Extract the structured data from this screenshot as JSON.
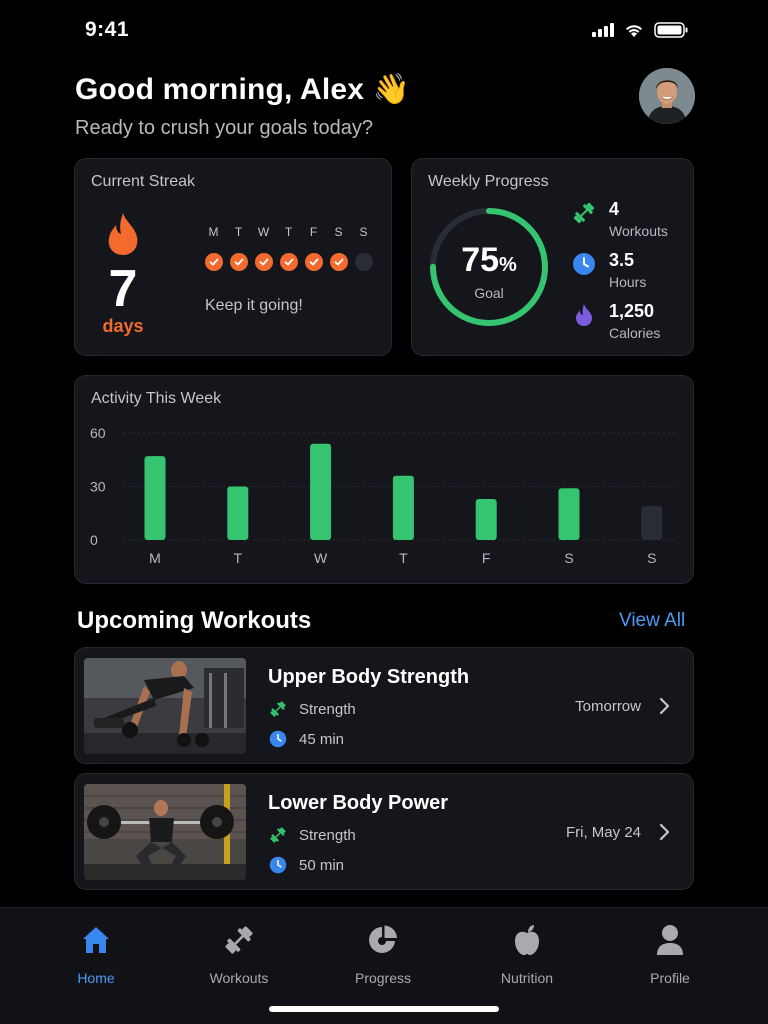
{
  "status": {
    "time": "9:41"
  },
  "header": {
    "greeting": "Good morning, Alex",
    "greeting_emoji": "👋",
    "subtitle": "Ready to crush your goals today?"
  },
  "streak": {
    "title": "Current Streak",
    "count": "7",
    "unit": "days",
    "message": "Keep it going!",
    "days": [
      {
        "letter": "M",
        "done": true
      },
      {
        "letter": "T",
        "done": true
      },
      {
        "letter": "W",
        "done": true
      },
      {
        "letter": "T",
        "done": true
      },
      {
        "letter": "F",
        "done": true
      },
      {
        "letter": "S",
        "done": true
      },
      {
        "letter": "S",
        "done": false
      }
    ]
  },
  "weekly": {
    "title": "Weekly Progress",
    "percent": "75",
    "percent_sign": "%",
    "progress_fraction": 0.75,
    "goal_label": "Goal",
    "stats": [
      {
        "value": "4",
        "label": "Workouts",
        "icon": "dumbbell-icon"
      },
      {
        "value": "3.5",
        "label": "Hours",
        "icon": "clock-icon"
      },
      {
        "value": "1,250",
        "label": "Calories",
        "icon": "flame-icon"
      }
    ]
  },
  "activity": {
    "title": "Activity This Week"
  },
  "chart_data": {
    "type": "bar",
    "categories": [
      "M",
      "T",
      "W",
      "T",
      "F",
      "S",
      "S"
    ],
    "values": [
      47,
      30,
      54,
      36,
      23,
      29,
      19
    ],
    "highlight": [
      true,
      true,
      true,
      true,
      true,
      true,
      false
    ],
    "yticks": [
      0,
      30,
      60
    ],
    "ylim": [
      0,
      60
    ],
    "grid": true,
    "colors": {
      "bar": "#35c46f",
      "bar_inactive": "#2a2d33"
    }
  },
  "upcoming": {
    "title": "Upcoming Workouts",
    "view_all": "View All",
    "workouts": [
      {
        "name": "Upper Body Strength",
        "type": "Strength",
        "duration": "45 min",
        "when": "Tomorrow"
      },
      {
        "name": "Lower Body Power",
        "type": "Strength",
        "duration": "50 min",
        "when": "Fri, May 24"
      }
    ]
  },
  "tabs": [
    {
      "label": "Home",
      "icon": "home-icon",
      "active": true
    },
    {
      "label": "Workouts",
      "icon": "dumbbell-icon",
      "active": false
    },
    {
      "label": "Progress",
      "icon": "pie-chart-icon",
      "active": false
    },
    {
      "label": "Nutrition",
      "icon": "apple-icon",
      "active": false
    },
    {
      "label": "Profile",
      "icon": "person-icon",
      "active": false
    }
  ],
  "colors": {
    "accent": "#4a9bf5",
    "green": "#35c46f",
    "orange": "#f26a2e",
    "purple": "#7b5ce0"
  }
}
